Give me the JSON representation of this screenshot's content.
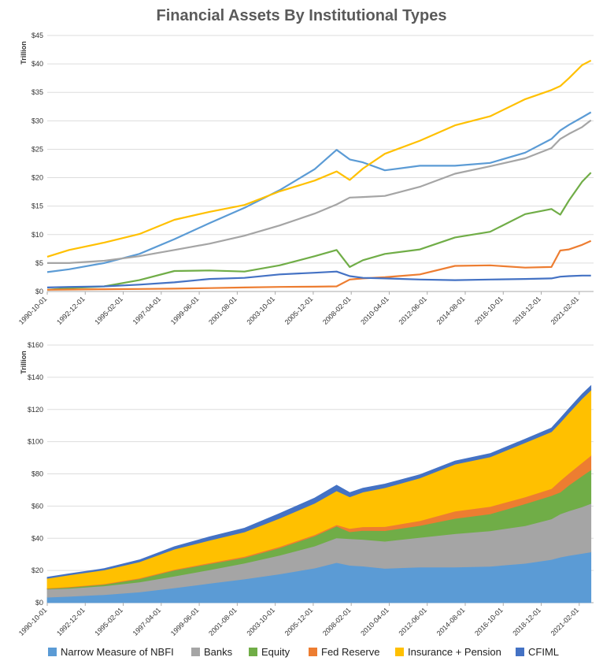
{
  "chart_title": "Financial Assets By Institutional Types",
  "colors": {
    "nbfi": "#5b9bd5",
    "banks": "#a5a5a5",
    "equity": "#70ad47",
    "fed": "#ed7d31",
    "insurance": "#ffc000",
    "cfiml": "#4472c4"
  },
  "legend": [
    {
      "key": "nbfi",
      "label": "Narrow Measure of NBFI"
    },
    {
      "key": "banks",
      "label": "Banks"
    },
    {
      "key": "equity",
      "label": "Equity"
    },
    {
      "key": "fed",
      "label": "Fed Reserve"
    },
    {
      "key": "insurance",
      "label": "Insurance + Pension"
    },
    {
      "key": "cfiml",
      "label": "CFIML"
    }
  ],
  "chart_data": [
    {
      "type": "line",
      "title": "Financial Assets By Institutional Types",
      "ylabel": "Trillion",
      "ylim": [
        0,
        45
      ],
      "yticks": [
        "$0",
        "$5",
        "$10",
        "$15",
        "$20",
        "$25",
        "$30",
        "$35",
        "$40",
        "$45"
      ],
      "xticks": [
        "1990-10-01",
        "1992-12-01",
        "1995-02-01",
        "1997-04-01",
        "1999-06-01",
        "2001-08-01",
        "2003-10-01",
        "2005-12-01",
        "2008-02-01",
        "2010-04-01",
        "2012-06-01",
        "2014-08-01",
        "2016-10-01",
        "2018-12-01",
        "2021-02-01"
      ],
      "x": [
        1990.75,
        1992,
        1994,
        1996,
        1998,
        2000,
        2002,
        2004,
        2006,
        2007.25,
        2008.0,
        2008.75,
        2010,
        2012,
        2014,
        2016,
        2018,
        2019.5,
        2020.0,
        2020.5,
        2021.25,
        2021.75
      ],
      "grid": true,
      "legend": "bottom",
      "series": [
        {
          "key": "nbfi",
          "name": "Narrow Measure of NBFI",
          "values": [
            3.4,
            3.9,
            5.0,
            6.6,
            9.2,
            12.0,
            14.7,
            17.8,
            21.5,
            24.9,
            23.2,
            22.7,
            21.3,
            22.1,
            22.1,
            22.6,
            24.4,
            26.8,
            28.3,
            29.3,
            30.6,
            31.5
          ]
        },
        {
          "key": "banks",
          "name": "Banks",
          "values": [
            5.0,
            5.0,
            5.4,
            6.2,
            7.3,
            8.4,
            9.8,
            11.6,
            13.7,
            15.3,
            16.5,
            16.6,
            16.8,
            18.4,
            20.7,
            22.0,
            23.4,
            25.2,
            26.8,
            27.7,
            28.9,
            30.1
          ]
        },
        {
          "key": "equity",
          "name": "Equity",
          "values": [
            0.3,
            0.6,
            0.9,
            2.0,
            3.6,
            3.7,
            3.5,
            4.6,
            6.2,
            7.3,
            4.3,
            5.5,
            6.6,
            7.4,
            9.5,
            10.5,
            13.6,
            14.5,
            13.5,
            16.0,
            19.3,
            20.9
          ]
        },
        {
          "key": "fed",
          "name": "Fed Reserve",
          "values": [
            0.3,
            0.35,
            0.4,
            0.45,
            0.5,
            0.6,
            0.7,
            0.8,
            0.85,
            0.9,
            2.1,
            2.3,
            2.5,
            3.0,
            4.5,
            4.6,
            4.2,
            4.3,
            7.2,
            7.4,
            8.2,
            8.9
          ]
        },
        {
          "key": "insurance",
          "name": "Insurance + Pension",
          "values": [
            6.1,
            7.3,
            8.6,
            10.1,
            12.6,
            14.0,
            15.2,
            17.6,
            19.5,
            21.1,
            19.6,
            21.6,
            24.2,
            26.5,
            29.2,
            30.8,
            33.8,
            35.4,
            36.1,
            37.5,
            39.8,
            40.6
          ]
        },
        {
          "key": "cfiml",
          "name": "CFIML",
          "values": [
            0.7,
            0.8,
            0.9,
            1.2,
            1.6,
            2.2,
            2.4,
            3.0,
            3.3,
            3.5,
            2.7,
            2.4,
            2.3,
            2.1,
            2.0,
            2.1,
            2.2,
            2.3,
            2.6,
            2.7,
            2.8,
            2.8
          ]
        }
      ]
    },
    {
      "type": "area",
      "stacked": true,
      "ylabel": "Trillion",
      "ylim": [
        0,
        160
      ],
      "yticks": [
        "$0",
        "$20",
        "$40",
        "$60",
        "$80",
        "$100",
        "$120",
        "$140",
        "$160"
      ],
      "xticks": [
        "1990-10-01",
        "1992-12-01",
        "1995-02-01",
        "1997-04-01",
        "1999-06-01",
        "2001-08-01",
        "2003-10-01",
        "2005-12-01",
        "2008-02-01",
        "2010-04-01",
        "2012-06-01",
        "2014-08-01",
        "2016-10-01",
        "2018-12-01",
        "2021-02-01"
      ],
      "grid": true,
      "legend": "bottom",
      "series_ref": "same series as chart 1, stacked in order: nbfi, banks, equity, fed, insurance, cfiml"
    }
  ]
}
